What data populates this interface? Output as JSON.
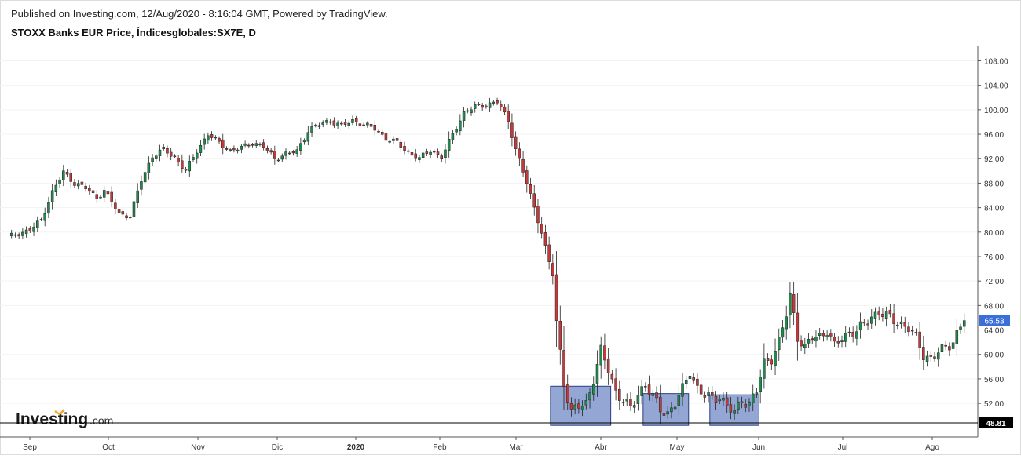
{
  "header": {
    "published": "Published on Investing.com, 12/Aug/2020 - 8:16:04 GMT, Powered by TradingView.",
    "symbol": "STOXX Banks EUR Price, Índicesglobales:SX7E, D"
  },
  "logo": {
    "brand_text": "Investing",
    "suffix": ".com"
  },
  "colors": {
    "up": "#1e8a4c",
    "down": "#c43a3a",
    "box_fill": "#8096cc",
    "box_stroke": "#2a3f80",
    "last_price_bg": "#3a6fd8",
    "ref_label_bg": "#000000"
  },
  "chart_data": {
    "type": "candlestick",
    "title": "STOXX Banks EUR Price, Índicesglobales:SX7E, D",
    "price_axis": {
      "ticks": [
        "108.00",
        "104.00",
        "100.00",
        "96.00",
        "92.00",
        "88.00",
        "84.00",
        "80.00",
        "76.00",
        "72.00",
        "68.00",
        "64.00",
        "60.00",
        "56.00",
        "52.00"
      ],
      "ylim": [
        46.5,
        110.5
      ]
    },
    "time_axis": {
      "labels": [
        "Sep",
        "Oct",
        "Nov",
        "Dic",
        "2020",
        "Feb",
        "Mar",
        "Abr",
        "May",
        "Jun",
        "Jul",
        "Ago"
      ]
    },
    "last_price": {
      "value": 65.53,
      "label": "65.53"
    },
    "reference_line": {
      "value": 48.81,
      "label": "48.81"
    },
    "highlight_boxes": [
      {
        "from_bar": 147,
        "to_bar": 162,
        "low": 48.4,
        "high": 54.8
      },
      {
        "from_bar": 172,
        "to_bar": 183,
        "low": 48.4,
        "high": 53.6
      },
      {
        "from_bar": 190,
        "to_bar": 202,
        "low": 48.4,
        "high": 53.4
      }
    ],
    "anchors": [
      [
        0,
        79.2
      ],
      [
        3,
        79.8
      ],
      [
        6,
        80.3
      ],
      [
        9,
        82.0
      ],
      [
        12,
        86.5
      ],
      [
        15,
        89.8
      ],
      [
        18,
        88.0
      ],
      [
        21,
        87.2
      ],
      [
        24,
        85.6
      ],
      [
        26,
        86.8
      ],
      [
        30,
        83.0
      ],
      [
        33,
        82.6
      ],
      [
        36,
        88.5
      ],
      [
        39,
        92.4
      ],
      [
        42,
        93.5
      ],
      [
        45,
        92.2
      ],
      [
        48,
        90.0
      ],
      [
        51,
        93.3
      ],
      [
        54,
        96.0
      ],
      [
        57,
        94.6
      ],
      [
        60,
        93.3
      ],
      [
        63,
        93.8
      ],
      [
        66,
        94.6
      ],
      [
        69,
        94.0
      ],
      [
        72,
        92.0
      ],
      [
        75,
        92.8
      ],
      [
        78,
        93.2
      ],
      [
        81,
        96.6
      ],
      [
        84,
        97.6
      ],
      [
        87,
        98.2
      ],
      [
        90,
        97.4
      ],
      [
        93,
        98.2
      ],
      [
        96,
        97.6
      ],
      [
        99,
        96.9
      ],
      [
        102,
        95.3
      ],
      [
        105,
        94.6
      ],
      [
        108,
        93.0
      ],
      [
        111,
        92.0
      ],
      [
        114,
        93.4
      ],
      [
        117,
        92.2
      ],
      [
        120,
        96.0
      ],
      [
        123,
        99.5
      ],
      [
        126,
        100.5
      ],
      [
        129,
        100.8
      ],
      [
        132,
        101.3
      ],
      [
        135,
        98.2
      ],
      [
        137,
        93.6
      ],
      [
        140,
        88.0
      ],
      [
        142,
        84.0
      ],
      [
        144,
        80.0
      ],
      [
        146,
        75.0
      ],
      [
        147,
        73.0
      ],
      [
        148,
        65.2
      ],
      [
        150,
        55.5
      ],
      [
        152,
        50.5
      ],
      [
        154,
        51.5
      ],
      [
        156,
        52.0
      ],
      [
        158,
        56.0
      ],
      [
        160,
        60.5
      ],
      [
        162,
        57.5
      ],
      [
        164,
        54.0
      ],
      [
        166,
        52.5
      ],
      [
        168,
        51.0
      ],
      [
        170,
        53.6
      ],
      [
        172,
        55.2
      ],
      [
        174,
        53.0
      ],
      [
        176,
        51.0
      ],
      [
        178,
        50.4
      ],
      [
        180,
        52.0
      ],
      [
        182,
        54.2
      ],
      [
        184,
        57.4
      ],
      [
        186,
        54.5
      ],
      [
        188,
        53.2
      ],
      [
        190,
        52.8
      ],
      [
        192,
        53.3
      ],
      [
        194,
        51.5
      ],
      [
        196,
        50.4
      ],
      [
        198,
        52.6
      ],
      [
        200,
        52.0
      ],
      [
        202,
        54.0
      ],
      [
        204,
        58.6
      ],
      [
        206,
        59.5
      ],
      [
        208,
        62.0
      ],
      [
        210,
        66.5
      ],
      [
        211,
        69.5
      ],
      [
        212,
        66.5
      ],
      [
        213,
        63.0
      ],
      [
        215,
        61.0
      ],
      [
        217,
        62.8
      ],
      [
        219,
        63.0
      ],
      [
        221,
        64.0
      ],
      [
        223,
        61.2
      ],
      [
        225,
        62.8
      ],
      [
        227,
        63.6
      ],
      [
        229,
        63.8
      ],
      [
        231,
        64.8
      ],
      [
        233,
        66.2
      ],
      [
        235,
        67.0
      ],
      [
        237,
        66.2
      ],
      [
        239,
        65.6
      ],
      [
        241,
        65.0
      ],
      [
        243,
        64.3
      ],
      [
        245,
        62.6
      ],
      [
        247,
        60.0
      ],
      [
        249,
        59.3
      ],
      [
        251,
        60.3
      ],
      [
        253,
        61.1
      ],
      [
        255,
        62.3
      ],
      [
        257,
        64.5
      ],
      [
        258,
        65.53
      ]
    ]
  }
}
